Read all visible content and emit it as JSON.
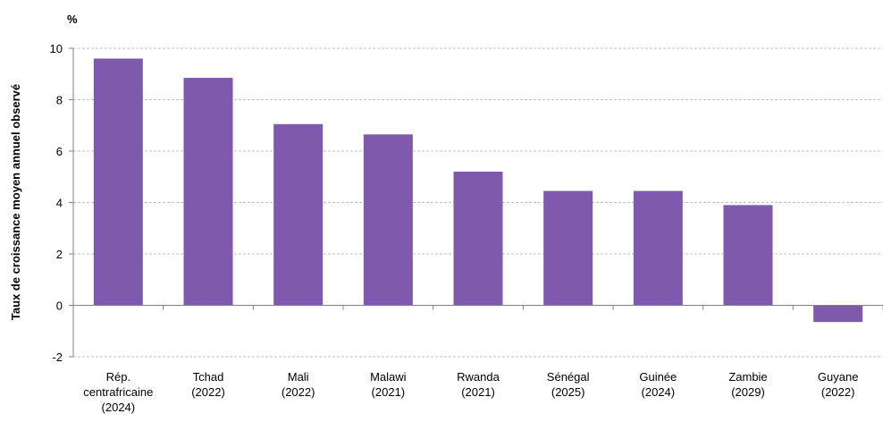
{
  "chart_data": {
    "type": "bar",
    "title": "",
    "unit_label": "%",
    "ylabel": "Taux de croissance moyen annuel observé",
    "xlabel": "",
    "ylim": [
      -2,
      10
    ],
    "yticks": [
      -2,
      0,
      2,
      4,
      6,
      8,
      10
    ],
    "grid": true,
    "legend": "none",
    "categories": [
      [
        "Rép.",
        "centrafricaine",
        "(2024)"
      ],
      [
        "Tchad",
        "(2022)"
      ],
      [
        "Mali",
        "(2022)"
      ],
      [
        "Malawi",
        "(2021)"
      ],
      [
        "Rwanda",
        "(2021)"
      ],
      [
        "Sénégal",
        "(2025)"
      ],
      [
        "Guinée",
        "(2024)"
      ],
      [
        "Zambie",
        "(2029)"
      ],
      [
        "Guyane",
        "(2022)"
      ]
    ],
    "values": [
      9.6,
      8.85,
      7.05,
      6.65,
      5.2,
      4.45,
      4.45,
      3.9,
      -0.65
    ],
    "bar_color": "#7f5aac",
    "grid_color": "#bfbfbf"
  }
}
